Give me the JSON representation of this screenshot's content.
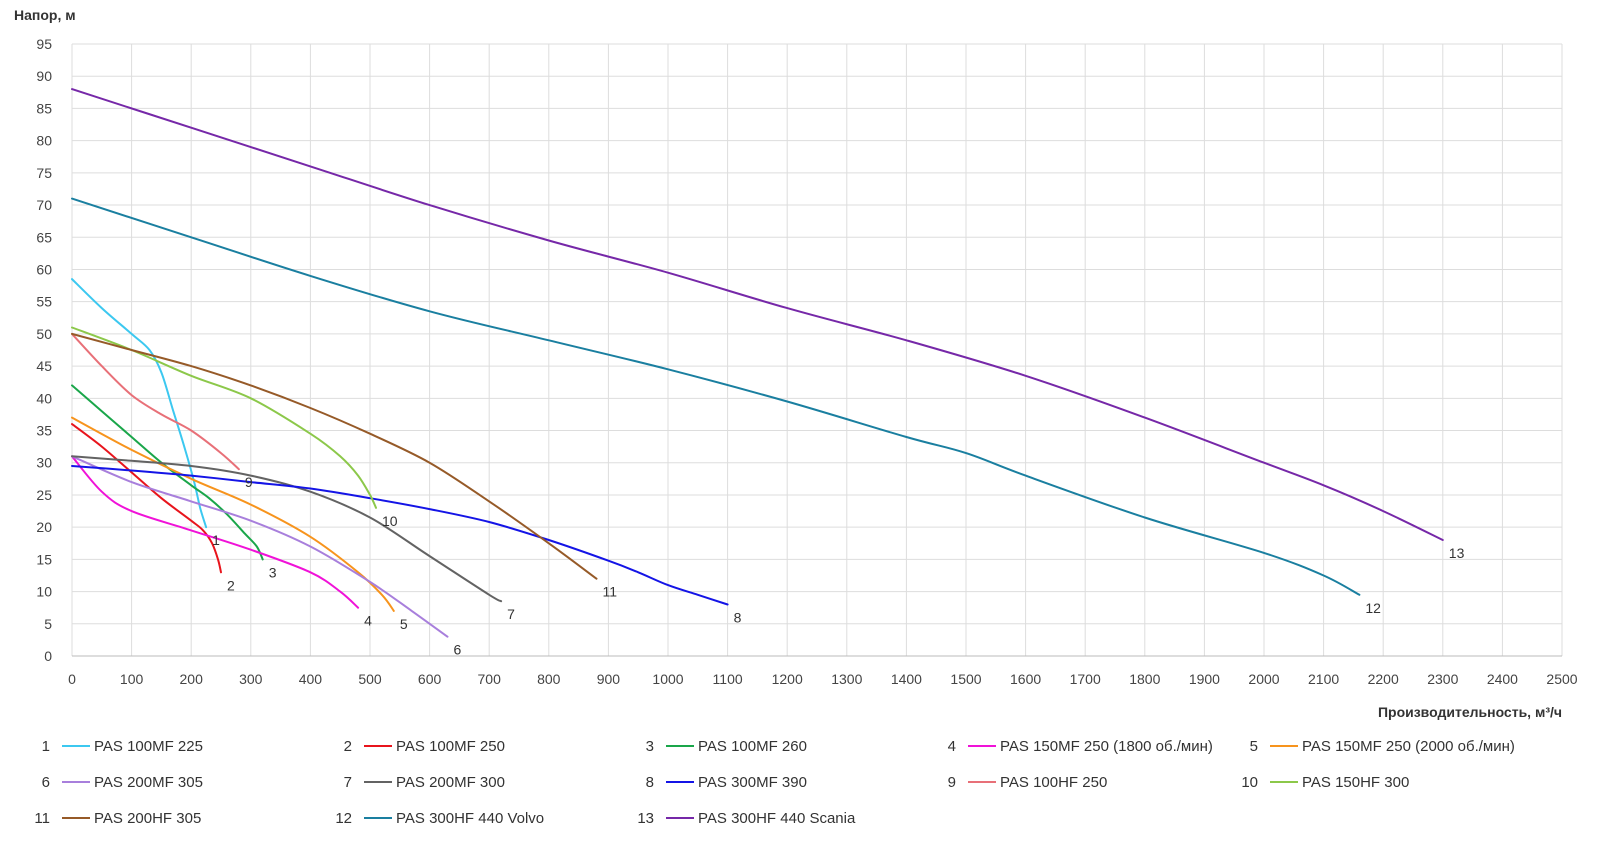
{
  "chart_data": {
    "type": "line",
    "ylabel": "Напор, м",
    "xlabel": "Производительность, м³/ч",
    "xlim": [
      0,
      2500
    ],
    "ylim": [
      0,
      95
    ],
    "x_ticks": [
      0,
      100,
      200,
      300,
      400,
      500,
      600,
      700,
      800,
      900,
      1000,
      1100,
      1200,
      1300,
      1400,
      1500,
      1600,
      1700,
      1800,
      1900,
      2000,
      2100,
      2200,
      2300,
      2400,
      2500
    ],
    "y_ticks": [
      0,
      5,
      10,
      15,
      20,
      25,
      30,
      35,
      40,
      45,
      50,
      55,
      60,
      65,
      70,
      75,
      80,
      85,
      90,
      95
    ],
    "grid": true,
    "legend_position": "bottom",
    "series": [
      {
        "id": "1",
        "name": "PAS 100MF 225",
        "color": "#3cc8f0",
        "x": [
          0,
          50,
          100,
          130,
          150,
          170,
          190,
          205,
          215,
          225
        ],
        "y": [
          58.5,
          54,
          50,
          47.5,
          44,
          38,
          32,
          27,
          23,
          20
        ]
      },
      {
        "id": "2",
        "name": "PAS 100MF 250",
        "color": "#e8141c",
        "x": [
          0,
          50,
          100,
          150,
          200,
          220,
          235,
          245,
          250
        ],
        "y": [
          36,
          32.5,
          28.5,
          24.5,
          21,
          19.5,
          17.5,
          15,
          13
        ]
      },
      {
        "id": "3",
        "name": "PAS 100MF 260",
        "color": "#1aa64a",
        "x": [
          0,
          50,
          100,
          150,
          200,
          230,
          260,
          290,
          310,
          320
        ],
        "y": [
          42,
          38,
          34,
          30,
          26.5,
          24.5,
          22,
          19,
          17,
          15
        ]
      },
      {
        "id": "4",
        "name": "PAS 150MF 250 (1800 об./мин)",
        "color": "#f012d8",
        "x": [
          0,
          50,
          100,
          200,
          300,
          400,
          450,
          480
        ],
        "y": [
          31,
          25.5,
          22.5,
          19.5,
          16.5,
          13,
          10,
          7.5
        ]
      },
      {
        "id": "5",
        "name": "PAS 150MF 250 (2000 об./мин)",
        "color": "#f7941d",
        "x": [
          0,
          100,
          200,
          300,
          400,
          480,
          520,
          540
        ],
        "y": [
          37,
          32,
          27.5,
          23.5,
          18.5,
          13,
          9.5,
          7
        ]
      },
      {
        "id": "6",
        "name": "PAS 200MF 305",
        "color": "#a87fdc",
        "x": [
          0,
          100,
          200,
          300,
          400,
          500,
          570,
          630
        ],
        "y": [
          31,
          27,
          24,
          21,
          17,
          11.5,
          7,
          3
        ]
      },
      {
        "id": "7",
        "name": "PAS 200MF 300",
        "color": "#636363",
        "x": [
          0,
          100,
          200,
          300,
          400,
          500,
          600,
          700,
          720
        ],
        "y": [
          31,
          30.3,
          29.5,
          28,
          25.5,
          21.5,
          15.5,
          9.5,
          8.5
        ]
      },
      {
        "id": "8",
        "name": "PAS 300MF 390",
        "color": "#1414e6",
        "x": [
          0,
          100,
          200,
          300,
          400,
          500,
          600,
          700,
          800,
          900,
          950,
          1000,
          1050,
          1100
        ],
        "y": [
          29.5,
          28.8,
          28,
          27,
          26,
          24.5,
          22.8,
          20.8,
          18,
          14.8,
          13,
          11,
          9.5,
          8
        ]
      },
      {
        "id": "9",
        "name": "PAS 100HF 250",
        "color": "#e87078",
        "x": [
          0,
          50,
          100,
          150,
          200,
          250,
          280
        ],
        "y": [
          50,
          45,
          40.5,
          37.5,
          35,
          31.5,
          29
        ]
      },
      {
        "id": "10",
        "name": "PAS 150HF 300",
        "color": "#8cc84a",
        "x": [
          0,
          100,
          200,
          300,
          400,
          450,
          480,
          500,
          510
        ],
        "y": [
          51,
          47.5,
          43.5,
          40,
          34.5,
          31,
          28,
          25,
          23
        ]
      },
      {
        "id": "11",
        "name": "PAS 200HF 305",
        "color": "#965a28",
        "x": [
          0,
          100,
          200,
          300,
          400,
          500,
          600,
          700,
          800,
          880
        ],
        "y": [
          50,
          47.5,
          45,
          42,
          38.5,
          34.5,
          30,
          24,
          17.5,
          12
        ]
      },
      {
        "id": "12",
        "name": "PAS 300HF 440 Volvo",
        "color": "#1a7fa0",
        "x": [
          0,
          200,
          400,
          600,
          800,
          1000,
          1200,
          1400,
          1500,
          1600,
          1800,
          2000,
          2100,
          2160
        ],
        "y": [
          71,
          65,
          59,
          53.5,
          49,
          44.5,
          39.5,
          34,
          31.5,
          28,
          21.5,
          16,
          12.5,
          9.5
        ]
      },
      {
        "id": "13",
        "name": "PAS 300HF 440 Scania",
        "color": "#7628a8",
        "x": [
          0,
          200,
          400,
          600,
          800,
          1000,
          1200,
          1400,
          1600,
          1800,
          2000,
          2100,
          2200,
          2300
        ],
        "y": [
          88,
          82,
          76,
          70,
          64.5,
          59.5,
          54,
          49,
          43.5,
          37,
          30,
          26.5,
          22.5,
          18
        ]
      }
    ]
  }
}
